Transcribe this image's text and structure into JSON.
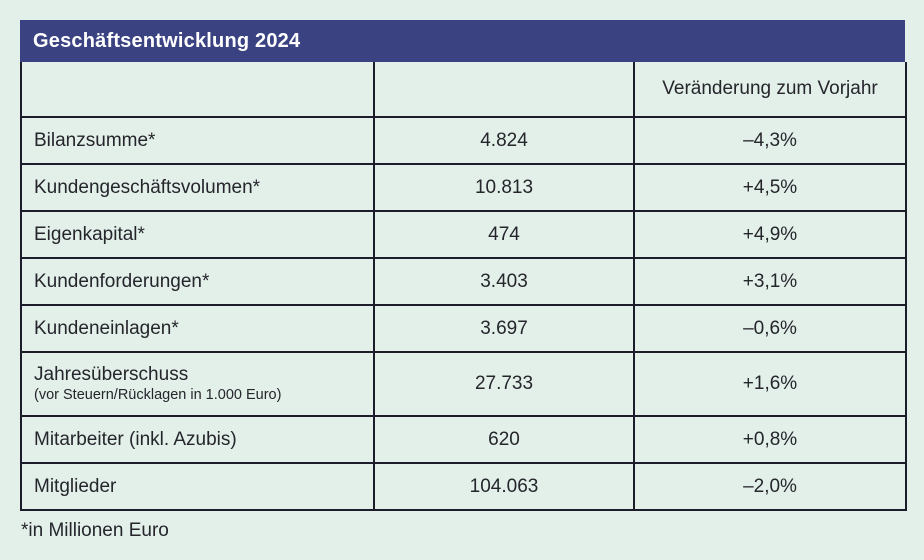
{
  "page": {
    "background_color": "#e3efe9",
    "accent_color": "#3a4282",
    "border_color": "#1c1c2a",
    "text_color": "#25252c"
  },
  "header": {
    "title": "Geschäftsentwicklung 2024"
  },
  "table": {
    "columns": [
      "",
      "",
      "Veränderung zum Vorjahr"
    ],
    "rows": [
      {
        "label": "Bilanzsumme*",
        "sublabel": "",
        "value": "4.824",
        "change": "–4,3%"
      },
      {
        "label": "Kundengeschäftsvolumen*",
        "sublabel": "",
        "value": "10.813",
        "change": "+4,5%"
      },
      {
        "label": "Eigenkapital*",
        "sublabel": "",
        "value": "474",
        "change": "+4,9%"
      },
      {
        "label": "Kundenforderungen*",
        "sublabel": "",
        "value": "3.403",
        "change": "+3,1%"
      },
      {
        "label": "Kundeneinlagen*",
        "sublabel": "",
        "value": "3.697",
        "change": "–0,6%"
      },
      {
        "label": "Jahresüberschuss",
        "sublabel": "(vor Steuern/Rücklagen in 1.000 Euro)",
        "value": "27.733",
        "change": "+1,6%"
      },
      {
        "label": "Mitarbeiter (inkl. Azubis)",
        "sublabel": "",
        "value": "620",
        "change": "+0,8%"
      },
      {
        "label": "Mitglieder",
        "sublabel": "",
        "value": "104.063",
        "change": "–2,0%"
      }
    ]
  },
  "footnote": "*in Millionen Euro"
}
